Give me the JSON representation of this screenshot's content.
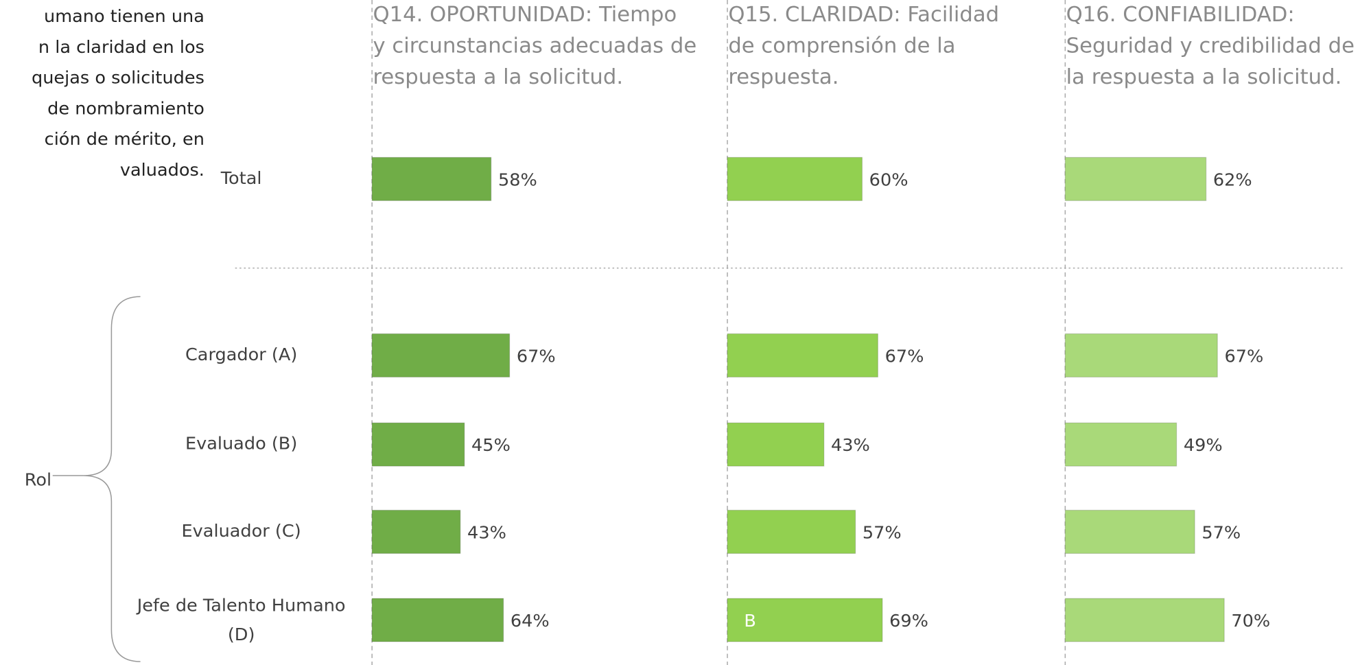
{
  "intro_text": [
    "umano tienen una",
    "n la claridad en los",
    "quejas o solicitudes",
    " de nombramiento",
    "ción de mérito, en",
    "valuados."
  ],
  "group_label": "Rol",
  "chart_data": [
    {
      "type": "bar",
      "title": [
        "Q14. OPORTUNIDAD: Tiempo",
        "y circunstancias adecuadas de",
        "respuesta a la solicitud."
      ],
      "categories": [
        "Total",
        "Cargador (A)",
        "Evaluado (B)",
        "Evaluador (C)",
        "Jefe de Talento Humano (D)"
      ],
      "values": [
        58,
        67,
        45,
        43,
        64
      ],
      "value_labels": [
        "58%",
        "67%",
        "45%",
        "43%",
        "64%"
      ],
      "color": "#70ad47",
      "xlim": [
        0,
        100
      ]
    },
    {
      "type": "bar",
      "title": [
        "Q15. CLARIDAD: Facilidad",
        "de comprensión de la",
        "respuesta."
      ],
      "values": [
        60,
        67,
        43,
        57,
        69
      ],
      "value_labels": [
        "60%",
        "67%",
        "43%",
        "57%",
        "69%"
      ],
      "color": "#92d050",
      "xlim": [
        0,
        100
      ],
      "annotation": "B"
    },
    {
      "type": "bar",
      "title": [
        "Q16. CONFIABILIDAD:",
        "Seguridad y credibilidad de",
        "la respuesta a la solicitud."
      ],
      "values": [
        62,
        67,
        49,
        57,
        70
      ],
      "value_labels": [
        "62%",
        "67%",
        "49%",
        "57%",
        "70%"
      ],
      "color": "#a9d979",
      "xlim": [
        0,
        100
      ]
    }
  ]
}
